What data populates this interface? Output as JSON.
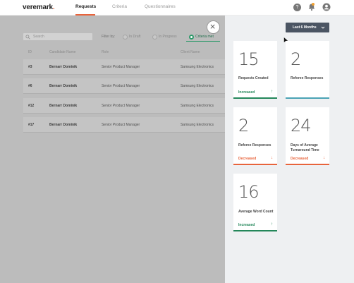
{
  "header": {
    "logo_text": "veremark",
    "logo_dot": ".",
    "tabs": [
      {
        "label": "Requests",
        "active": true
      },
      {
        "label": "Criteria",
        "active": false
      },
      {
        "label": "Questionnaires",
        "active": false
      }
    ],
    "help_glyph": "?",
    "icons": [
      "help-icon",
      "bell-icon",
      "user-icon"
    ]
  },
  "filters": {
    "search_placeholder": "Search",
    "filter_label": "Filter by:",
    "options": [
      {
        "label": "In Draft",
        "selected": false
      },
      {
        "label": "In Progress",
        "selected": false
      },
      {
        "label": "Criteria met",
        "selected": true
      }
    ]
  },
  "table": {
    "columns": [
      "ID",
      "Candidate Name",
      "Role",
      "Client Name"
    ],
    "rows": [
      {
        "id": "#3",
        "name": "Bernarr Dominik",
        "role": "Senior Product Manager",
        "client": "Samsung Electronics"
      },
      {
        "id": "#6",
        "name": "Bernarr Dominik",
        "role": "Senior Product Manager",
        "client": "Samsung Electronics"
      },
      {
        "id": "#12",
        "name": "Bernarr Dominik",
        "role": "Senior Product Manager",
        "client": "Samsung Electronics"
      },
      {
        "id": "#17",
        "name": "Bernarr Dominik",
        "role": "Senior Product Manager",
        "client": "Samsung Electronics"
      }
    ]
  },
  "stats_panel": {
    "range_label": "Last 6 Months",
    "colors": {
      "increase": "#23875a",
      "decrease": "#e8643c",
      "neutral": "#4aa3b5"
    },
    "cards": [
      {
        "value": "15",
        "label": "Requests Created",
        "trend": "Increased",
        "arrow": "↑",
        "direction": "up"
      },
      {
        "value": "2",
        "label": "Referee Responses",
        "trend": "",
        "arrow": "",
        "direction": "neutral"
      },
      {
        "value": "2",
        "label": "Referee Responses",
        "trend": "Decreased",
        "arrow": "↓",
        "direction": "down"
      },
      {
        "value": "24",
        "label": "Days of Average Turnaround Time",
        "trend": "Decreased",
        "arrow": "↓",
        "direction": "down"
      },
      {
        "value": "16",
        "label": "Average Word Count",
        "trend": "Increased",
        "arrow": "↑",
        "direction": "up"
      }
    ]
  }
}
